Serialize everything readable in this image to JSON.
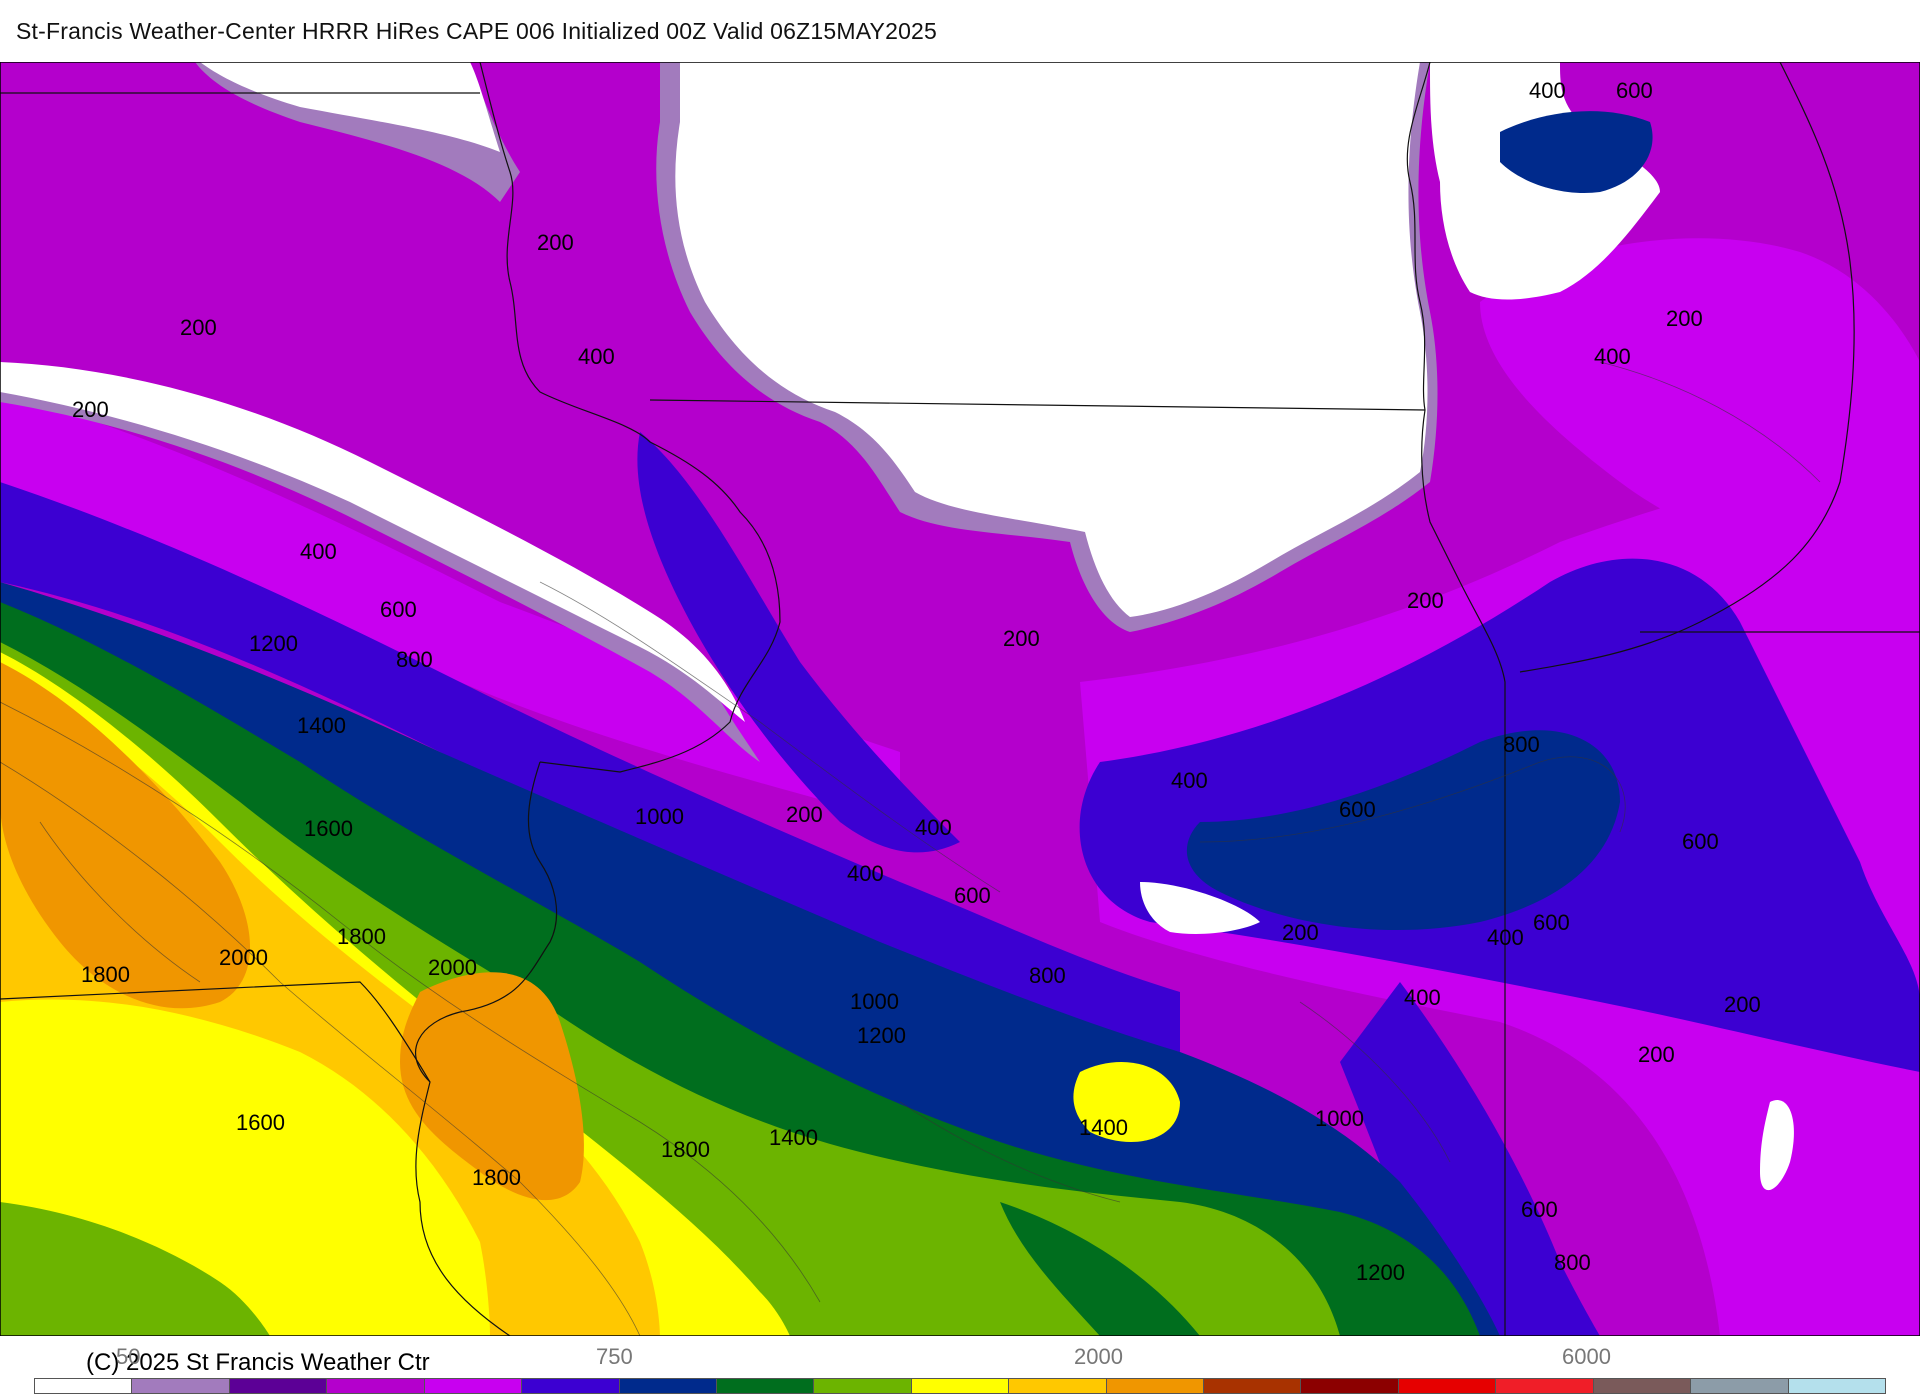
{
  "header": {
    "title": "St-Francis Weather-Center HRRR HiRes CAPE  006 Initialized  00Z Valid 06Z15MAY2025"
  },
  "footer": {
    "copyright": "(C) 2025 St Francis Weather Ctr"
  },
  "map": {
    "field": "CAPE",
    "contour_labels": [
      "200",
      "200",
      "200",
      "200",
      "200",
      "200",
      "200",
      "200",
      "200",
      "200",
      "200",
      "400",
      "400",
      "400",
      "400",
      "400",
      "400",
      "400",
      "400",
      "400",
      "400",
      "600",
      "600",
      "600",
      "600",
      "600",
      "600",
      "600",
      "600",
      "800",
      "800",
      "800",
      "800",
      "1000",
      "1000",
      "1000",
      "1200",
      "1200",
      "1200",
      "1400",
      "1400",
      "1400",
      "1600",
      "1600",
      "1800",
      "1800",
      "1800",
      "1800",
      "1800",
      "2000",
      "2000"
    ],
    "colors": {
      "none": "#ffffff",
      "c100": "#a27bbd",
      "c200": "#5c0096",
      "c300": "#b400cc",
      "c400": "#c800f0",
      "c500": "#3c00d2",
      "c600": "#002a8c",
      "c800": "#006e1e",
      "c1000": "#6cb400",
      "c1200": "#ffff00",
      "c1600": "#ffc800",
      "c2000": "#f09600",
      "c2500": "#a83200"
    }
  },
  "colorbar": {
    "tick_labels": [
      "50",
      "750",
      "2000",
      "6000"
    ],
    "colors": [
      "#ffffff",
      "#a27bbd",
      "#5c0096",
      "#b400cc",
      "#c800f0",
      "#3c00d2",
      "#002a8c",
      "#006e1e",
      "#6cb400",
      "#ffff00",
      "#ffc800",
      "#f09600",
      "#a83200",
      "#8c0000",
      "#e60000",
      "#f01e28",
      "#7a5a5a",
      "#8c9ca8",
      "#b4e0ec"
    ]
  }
}
